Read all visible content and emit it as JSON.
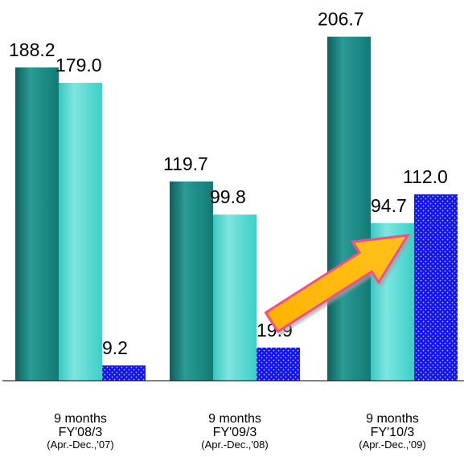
{
  "chart_data": {
    "type": "bar",
    "categories": [
      {
        "line1": "9 months",
        "line2": "FY'08/3",
        "line3": "(Apr.-Dec.,'07)"
      },
      {
        "line1": "9 months",
        "line2": "FY'09/3",
        "line3": "(Apr.-Dec.,'08)"
      },
      {
        "line1": "9 months",
        "line2": "FY'10/3",
        "line3": "(Apr.-Dec.,'09)"
      }
    ],
    "series": [
      {
        "values": [
          188.2,
          119.7,
          206.7
        ],
        "labels": [
          "188.2",
          "119.7",
          "206.7"
        ],
        "color": "#1f8a84",
        "pattern": "gradient-teal"
      },
      {
        "values": [
          179.0,
          99.8,
          94.7
        ],
        "labels": [
          "179.0",
          "99.8",
          "94.7"
        ],
        "color": "#4fd6d0",
        "pattern": "gradient-cyan"
      },
      {
        "values": [
          9.2,
          19.9,
          112.0
        ],
        "labels": [
          "9.2",
          "19.9",
          "112.0"
        ],
        "color": "#1818ff",
        "pattern": "dotted-blue"
      }
    ],
    "ylim": [
      0,
      220
    ],
    "grid": false,
    "legend": "none",
    "annotation": {
      "type": "arrow",
      "from_category": 1,
      "to_category": 2,
      "color": "#ffb000",
      "outline": "#f0508c"
    }
  }
}
